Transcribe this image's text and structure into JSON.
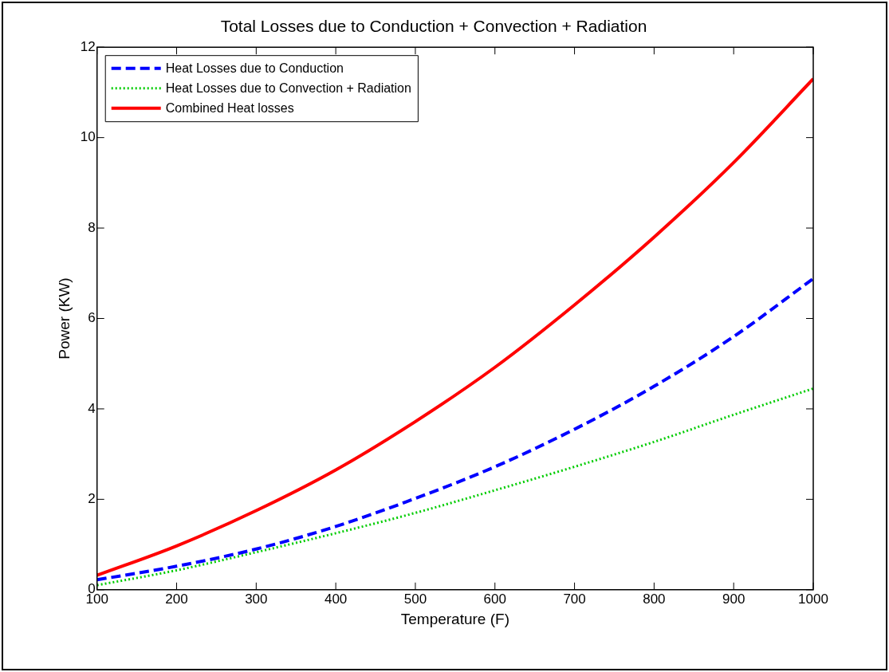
{
  "chart_data": {
    "type": "line",
    "title": "Total Losses due to Conduction + Convection + Radiation",
    "xlabel": "Temperature (F)",
    "ylabel": "Power (KW)",
    "x": [
      100,
      200,
      300,
      400,
      500,
      600,
      700,
      800,
      900,
      1000
    ],
    "series": [
      {
        "name": "Heat Losses due to Conduction",
        "color": "#0000ff",
        "line_style": "dashed",
        "values": [
          0.22,
          0.52,
          0.9,
          1.4,
          2.02,
          2.72,
          3.55,
          4.5,
          5.6,
          6.88
        ]
      },
      {
        "name": "Heat Losses due to Convection + Radiation",
        "color": "#00cc00",
        "line_style": "dotted",
        "values": [
          0.1,
          0.43,
          0.83,
          1.25,
          1.7,
          2.2,
          2.72,
          3.27,
          3.87,
          4.45
        ]
      },
      {
        "name": "Combined Heat losses",
        "color": "#ff0000",
        "line_style": "solid",
        "values": [
          0.32,
          0.97,
          1.75,
          2.65,
          3.72,
          4.92,
          6.3,
          7.8,
          9.45,
          11.3
        ]
      }
    ],
    "xlim": [
      100,
      1000
    ],
    "xticks": [
      100,
      200,
      300,
      400,
      500,
      600,
      700,
      800,
      900,
      1000
    ],
    "ylim": [
      0,
      12
    ],
    "yticks": [
      0,
      2,
      4,
      6,
      8,
      10,
      12
    ],
    "grid": false,
    "legend": "top left",
    "marker": "none"
  }
}
